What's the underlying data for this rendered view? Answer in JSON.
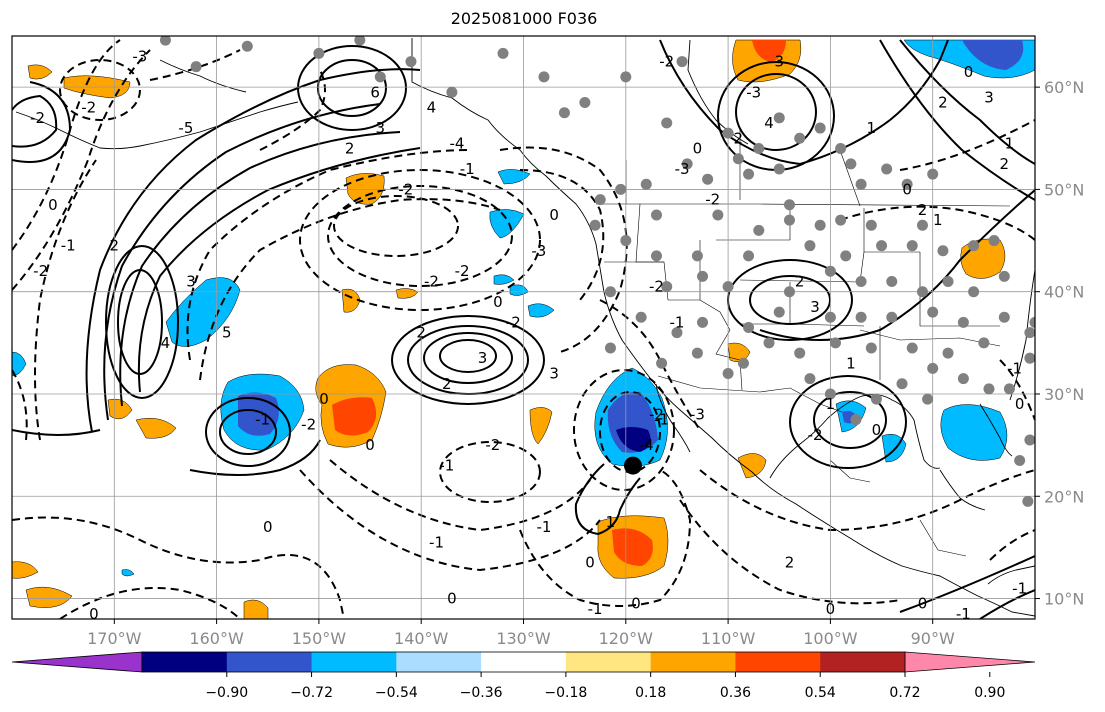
{
  "title": "2025081000 F036",
  "map": {
    "projection": "equirectangular",
    "extent": {
      "lon_min": -180,
      "lon_max": -80,
      "lat_min": 8,
      "lat_max": 65
    },
    "grid": true,
    "lon_ticks": [
      {
        "lon": -170,
        "label": "170°W"
      },
      {
        "lon": -160,
        "label": "160°W"
      },
      {
        "lon": -150,
        "label": "150°W"
      },
      {
        "lon": -140,
        "label": "140°W"
      },
      {
        "lon": -130,
        "label": "130°W"
      },
      {
        "lon": -120,
        "label": "120°W"
      },
      {
        "lon": -110,
        "label": "110°W"
      },
      {
        "lon": -100,
        "label": "100°W"
      },
      {
        "lon": -90,
        "label": "90°W"
      }
    ],
    "lat_ticks": [
      {
        "lat": 10,
        "label": "10°N"
      },
      {
        "lat": 20,
        "label": "20°N"
      },
      {
        "lat": 30,
        "label": "30°N"
      },
      {
        "lat": 40,
        "label": "40°N"
      },
      {
        "lat": 50,
        "label": "50°N"
      },
      {
        "lat": 60,
        "label": "60°N"
      }
    ],
    "marker": {
      "lon": -119.3,
      "lat": 23.0,
      "color": "#000000"
    }
  },
  "colorbar": {
    "ticks": [
      "−0.90",
      "−0.72",
      "−0.54",
      "−0.36",
      "−0.18",
      "0.18",
      "0.36",
      "0.54",
      "0.72",
      "0.90"
    ],
    "colors": [
      "#9933cc",
      "#000080",
      "#3355cc",
      "#00bbff",
      "#aaddff",
      "#ffffff",
      "#ffe680",
      "#ffa500",
      "#ff4500",
      "#b22222",
      "#ff88aa"
    ]
  },
  "contour_labels": [
    {
      "text": "-2",
      "lon": -177.5,
      "lat": 57
    },
    {
      "text": "0",
      "lon": -176,
      "lat": 48.5
    },
    {
      "text": "-2",
      "lon": -177.2,
      "lat": 42
    },
    {
      "text": "-1",
      "lon": -174.5,
      "lat": 44.5
    },
    {
      "text": "-2",
      "lon": -172.5,
      "lat": 58
    },
    {
      "text": "2",
      "lon": -170,
      "lat": 44.5
    },
    {
      "text": "4",
      "lon": -165,
      "lat": 35
    },
    {
      "text": "3",
      "lon": -162.5,
      "lat": 41
    },
    {
      "text": "5",
      "lon": -159,
      "lat": 36
    },
    {
      "text": "-3",
      "lon": -167.5,
      "lat": 63
    },
    {
      "text": "-5",
      "lon": -163,
      "lat": 56
    },
    {
      "text": "6",
      "lon": -144.5,
      "lat": 59.5
    },
    {
      "text": "4",
      "lon": -139,
      "lat": 58
    },
    {
      "text": "3",
      "lon": -144,
      "lat": 56
    },
    {
      "text": "2",
      "lon": -147,
      "lat": 54
    },
    {
      "text": "-4",
      "lon": -136.5,
      "lat": 54.5
    },
    {
      "text": "-1",
      "lon": -135.5,
      "lat": 52
    },
    {
      "text": "-2",
      "lon": -141.5,
      "lat": 50
    },
    {
      "text": "-2",
      "lon": -139,
      "lat": 41
    },
    {
      "text": "-2",
      "lon": -136,
      "lat": 42
    },
    {
      "text": "-3",
      "lon": -128.5,
      "lat": 44
    },
    {
      "text": "-2",
      "lon": -131,
      "lat": 37
    },
    {
      "text": "0",
      "lon": -132.5,
      "lat": 39
    },
    {
      "text": "2",
      "lon": -140,
      "lat": 36
    },
    {
      "text": "3",
      "lon": -134,
      "lat": 33.5
    },
    {
      "text": "3",
      "lon": -127,
      "lat": 32
    },
    {
      "text": "2",
      "lon": -137.5,
      "lat": 31
    },
    {
      "text": "-1",
      "lon": -155.5,
      "lat": 27.5
    },
    {
      "text": "-2",
      "lon": -151,
      "lat": 27
    },
    {
      "text": "0",
      "lon": -149.5,
      "lat": 29.5
    },
    {
      "text": "0",
      "lon": -155,
      "lat": 17
    },
    {
      "text": "-1",
      "lon": -137.5,
      "lat": 23
    },
    {
      "text": "-2",
      "lon": -133,
      "lat": 25
    },
    {
      "text": "0",
      "lon": -145,
      "lat": 25
    },
    {
      "text": "-1",
      "lon": -138.5,
      "lat": 15.5
    },
    {
      "text": "-1",
      "lon": -128,
      "lat": 17
    },
    {
      "text": "0",
      "lon": -137,
      "lat": 10
    },
    {
      "text": "0",
      "lon": -172,
      "lat": 8.5
    },
    {
      "text": "1",
      "lon": -121.5,
      "lat": 17.5
    },
    {
      "text": "0",
      "lon": -123.5,
      "lat": 13.5
    },
    {
      "text": "0",
      "lon": -119,
      "lat": 9.5
    },
    {
      "text": "-1",
      "lon": -123,
      "lat": 9
    },
    {
      "text": "-2",
      "lon": -117,
      "lat": 28
    },
    {
      "text": "-3",
      "lon": -113,
      "lat": 28
    },
    {
      "text": "-4",
      "lon": -118,
      "lat": 25
    },
    {
      "text": "-1",
      "lon": -116.5,
      "lat": 27.5
    },
    {
      "text": "-2",
      "lon": -116,
      "lat": 62.5
    },
    {
      "text": "-3",
      "lon": -107.5,
      "lat": 59.5
    },
    {
      "text": "3",
      "lon": -105,
      "lat": 62.5
    },
    {
      "text": "4",
      "lon": -106,
      "lat": 56.5
    },
    {
      "text": "2",
      "lon": -109,
      "lat": 55
    },
    {
      "text": "0",
      "lon": -113,
      "lat": 54
    },
    {
      "text": "1",
      "lon": -96,
      "lat": 56
    },
    {
      "text": "0",
      "lon": -86.5,
      "lat": 61.5
    },
    {
      "text": "2",
      "lon": -89,
      "lat": 58.5
    },
    {
      "text": "3",
      "lon": -84.5,
      "lat": 59
    },
    {
      "text": "1",
      "lon": -82.5,
      "lat": 54.5
    },
    {
      "text": "2",
      "lon": -83,
      "lat": 52.5
    },
    {
      "text": "0",
      "lon": -92.5,
      "lat": 50
    },
    {
      "text": "2",
      "lon": -91,
      "lat": 48
    },
    {
      "text": "1",
      "lon": -89.5,
      "lat": 47
    },
    {
      "text": "-2",
      "lon": -111.5,
      "lat": 49
    },
    {
      "text": "-3",
      "lon": -114.5,
      "lat": 52
    },
    {
      "text": "-2",
      "lon": -117,
      "lat": 40.5
    },
    {
      "text": "-1",
      "lon": -115,
      "lat": 37
    },
    {
      "text": "2",
      "lon": -103,
      "lat": 41
    },
    {
      "text": "3",
      "lon": -101.5,
      "lat": 38.5
    },
    {
      "text": "1",
      "lon": -98,
      "lat": 33
    },
    {
      "text": "1",
      "lon": -100,
      "lat": 29
    },
    {
      "text": "0",
      "lon": -95.5,
      "lat": 26.5
    },
    {
      "text": "-2",
      "lon": -101.5,
      "lat": 26
    },
    {
      "text": "-1",
      "lon": -82,
      "lat": 32.5
    },
    {
      "text": "0",
      "lon": -81.5,
      "lat": 29
    },
    {
      "text": "-1",
      "lon": -81.5,
      "lat": 11
    },
    {
      "text": "0",
      "lon": -91,
      "lat": 9.5
    },
    {
      "text": "-1",
      "lon": -87,
      "lat": 8.5
    },
    {
      "text": "0",
      "lon": -100,
      "lat": 9
    },
    {
      "text": "2",
      "lon": -104,
      "lat": 13.5
    },
    {
      "text": "0",
      "lon": -127,
      "lat": 47.5
    }
  ],
  "stations": [
    [
      -165,
      64.6
    ],
    [
      -162,
      62
    ],
    [
      -157,
      64
    ],
    [
      -150,
      63.3
    ],
    [
      -146,
      64.6
    ],
    [
      -144,
      61
    ],
    [
      -141,
      62.5
    ],
    [
      -137,
      59.5
    ],
    [
      -132,
      63.3
    ],
    [
      -128,
      61
    ],
    [
      -126,
      57.5
    ],
    [
      -124,
      58.5
    ],
    [
      -120,
      61
    ],
    [
      -114.5,
      62.5
    ],
    [
      -116,
      56.5
    ],
    [
      -114,
      52.5
    ],
    [
      -112,
      51
    ],
    [
      -110,
      55.5
    ],
    [
      -109,
      53
    ],
    [
      -108,
      51.5
    ],
    [
      -105,
      57
    ],
    [
      -107,
      54
    ],
    [
      -105,
      52
    ],
    [
      -104,
      48.5
    ],
    [
      -103,
      55
    ],
    [
      -101,
      56
    ],
    [
      -99,
      54
    ],
    [
      -98,
      52.5
    ],
    [
      -97,
      50.5
    ],
    [
      -94.5,
      52
    ],
    [
      -92.5,
      50.5
    ],
    [
      -90,
      51.5
    ],
    [
      -91,
      46.5
    ],
    [
      -96,
      46.5
    ],
    [
      -99,
      47
    ],
    [
      -101,
      46.5
    ],
    [
      -104,
      47
    ],
    [
      -107,
      46
    ],
    [
      -111,
      47.5
    ],
    [
      -117,
      47.5
    ],
    [
      -122.5,
      49
    ],
    [
      -120.5,
      50
    ],
    [
      -118,
      50.5
    ],
    [
      -120,
      45
    ],
    [
      -123,
      46.5
    ],
    [
      -117,
      43.5
    ],
    [
      -113,
      43.5
    ],
    [
      -108,
      43.5
    ],
    [
      -102,
      44.5
    ],
    [
      -98.5,
      43.5
    ],
    [
      -95,
      44.5
    ],
    [
      -92,
      44.5
    ],
    [
      -89,
      44
    ],
    [
      -86,
      44.5
    ],
    [
      -84,
      45
    ],
    [
      -83,
      41.5
    ],
    [
      -86,
      40
    ],
    [
      -88.5,
      41
    ],
    [
      -91,
      40
    ],
    [
      -94,
      41
    ],
    [
      -97,
      41
    ],
    [
      -100,
      42
    ],
    [
      -104,
      40
    ],
    [
      -110,
      40.5
    ],
    [
      -112.5,
      41.5
    ],
    [
      -116,
      40.5
    ],
    [
      -121.5,
      40
    ],
    [
      -118.5,
      37.5
    ],
    [
      -115,
      36
    ],
    [
      -112.5,
      37
    ],
    [
      -108,
      36.5
    ],
    [
      -105,
      38
    ],
    [
      -100,
      37.5
    ],
    [
      -97,
      37.5
    ],
    [
      -94,
      37.5
    ],
    [
      -90,
      38
    ],
    [
      -87,
      37
    ],
    [
      -83,
      37.5
    ],
    [
      -85,
      35
    ],
    [
      -88.5,
      34
    ],
    [
      -92,
      34.5
    ],
    [
      -96,
      34.5
    ],
    [
      -99.5,
      35
    ],
    [
      -103,
      34
    ],
    [
      -106,
      35
    ],
    [
      -108.5,
      33
    ],
    [
      -110,
      32
    ],
    [
      -113,
      34
    ],
    [
      -116.5,
      33
    ],
    [
      -121.5,
      34.5
    ],
    [
      -80.5,
      36
    ],
    [
      -80.5,
      33.5
    ],
    [
      -82.5,
      30.5
    ],
    [
      -84.5,
      30.5
    ],
    [
      -87,
      31.5
    ],
    [
      -90,
      32.5
    ],
    [
      -93,
      31
    ],
    [
      -95.5,
      29.5
    ],
    [
      -97.5,
      27.5
    ],
    [
      -100,
      30
    ],
    [
      -102,
      31.5
    ],
    [
      -90.5,
      29.5
    ],
    [
      -80.5,
      25.5
    ],
    [
      -81.5,
      23.5
    ],
    [
      -80,
      37
    ],
    [
      -80.7,
      19.5
    ]
  ]
}
